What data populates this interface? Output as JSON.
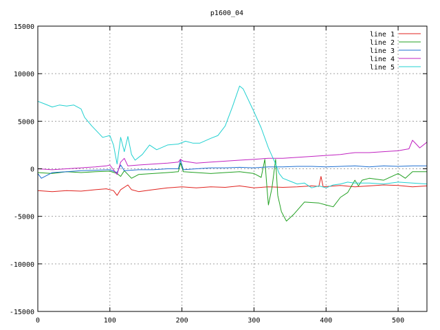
{
  "chart_data": {
    "type": "line",
    "title": "p1600_04",
    "xlabel": "",
    "ylabel": "",
    "xlim": [
      0,
      540
    ],
    "ylim": [
      -15000,
      15000
    ],
    "x_ticks": [
      "0",
      "100",
      "200",
      "300",
      "400",
      "500"
    ],
    "y_ticks": [
      "15000",
      "10000",
      "5000",
      "0",
      "-5000",
      "-10000",
      "-15000"
    ],
    "x_tick_values": [
      0,
      100,
      200,
      300,
      400,
      500
    ],
    "y_tick_values": [
      15000,
      10000,
      5000,
      0,
      -5000,
      -10000,
      -15000
    ],
    "grid": true,
    "legend_position": "top-right",
    "series": [
      {
        "name": "line 1",
        "color": "#e0201c",
        "points": [
          [
            0,
            -2300
          ],
          [
            20,
            -2400
          ],
          [
            40,
            -2300
          ],
          [
            60,
            -2350
          ],
          [
            80,
            -2200
          ],
          [
            95,
            -2100
          ],
          [
            105,
            -2300
          ],
          [
            110,
            -2800
          ],
          [
            115,
            -2200
          ],
          [
            125,
            -1700
          ],
          [
            130,
            -2200
          ],
          [
            140,
            -2400
          ],
          [
            160,
            -2200
          ],
          [
            180,
            -2000
          ],
          [
            200,
            -1900
          ],
          [
            220,
            -2000
          ],
          [
            240,
            -1900
          ],
          [
            260,
            -1950
          ],
          [
            280,
            -1800
          ],
          [
            300,
            -2000
          ],
          [
            320,
            -1900
          ],
          [
            340,
            -1950
          ],
          [
            360,
            -1900
          ],
          [
            380,
            -1800
          ],
          [
            390,
            -1850
          ],
          [
            393,
            -800
          ],
          [
            396,
            -1900
          ],
          [
            420,
            -1750
          ],
          [
            440,
            -1900
          ],
          [
            460,
            -1800
          ],
          [
            480,
            -1700
          ],
          [
            500,
            -1750
          ],
          [
            520,
            -1900
          ],
          [
            540,
            -1800
          ]
        ]
      },
      {
        "name": "line 2",
        "color": "#20a020",
        "points": [
          [
            0,
            -400
          ],
          [
            20,
            -500
          ],
          [
            40,
            -300
          ],
          [
            60,
            -400
          ],
          [
            80,
            -300
          ],
          [
            100,
            -250
          ],
          [
            110,
            -500
          ],
          [
            115,
            -800
          ],
          [
            120,
            -200
          ],
          [
            130,
            -1000
          ],
          [
            140,
            -600
          ],
          [
            160,
            -500
          ],
          [
            180,
            -400
          ],
          [
            195,
            -300
          ],
          [
            198,
            600
          ],
          [
            202,
            -300
          ],
          [
            220,
            -400
          ],
          [
            240,
            -500
          ],
          [
            260,
            -400
          ],
          [
            280,
            -300
          ],
          [
            300,
            -500
          ],
          [
            310,
            -900
          ],
          [
            315,
            1000
          ],
          [
            318,
            -2000
          ],
          [
            320,
            -3800
          ],
          [
            325,
            -2000
          ],
          [
            330,
            1000
          ],
          [
            333,
            -2800
          ],
          [
            338,
            -4500
          ],
          [
            345,
            -5500
          ],
          [
            355,
            -4800
          ],
          [
            370,
            -3500
          ],
          [
            390,
            -3600
          ],
          [
            400,
            -3800
          ],
          [
            410,
            -4000
          ],
          [
            420,
            -3000
          ],
          [
            430,
            -2500
          ],
          [
            440,
            -1200
          ],
          [
            445,
            -1800
          ],
          [
            450,
            -1200
          ],
          [
            460,
            -1000
          ],
          [
            480,
            -1200
          ],
          [
            500,
            -500
          ],
          [
            510,
            -1000
          ],
          [
            520,
            -300
          ],
          [
            540,
            -300
          ]
        ]
      },
      {
        "name": "line 3",
        "color": "#1c6ed0",
        "points": [
          [
            0,
            -500
          ],
          [
            5,
            -1000
          ],
          [
            20,
            -400
          ],
          [
            40,
            -300
          ],
          [
            60,
            -200
          ],
          [
            80,
            -150
          ],
          [
            100,
            -100
          ],
          [
            110,
            -400
          ],
          [
            115,
            400
          ],
          [
            120,
            -200
          ],
          [
            140,
            -100
          ],
          [
            160,
            -100
          ],
          [
            180,
            0
          ],
          [
            195,
            0
          ],
          [
            198,
            900
          ],
          [
            202,
            -100
          ],
          [
            220,
            0
          ],
          [
            240,
            100
          ],
          [
            260,
            100
          ],
          [
            280,
            150
          ],
          [
            300,
            100
          ],
          [
            320,
            200
          ],
          [
            340,
            200
          ],
          [
            360,
            250
          ],
          [
            380,
            250
          ],
          [
            400,
            200
          ],
          [
            420,
            250
          ],
          [
            440,
            300
          ],
          [
            460,
            200
          ],
          [
            480,
            300
          ],
          [
            500,
            250
          ],
          [
            520,
            300
          ],
          [
            540,
            300
          ]
        ]
      },
      {
        "name": "line 4",
        "color": "#c020c0",
        "points": [
          [
            0,
            0
          ],
          [
            20,
            -100
          ],
          [
            40,
            0
          ],
          [
            60,
            100
          ],
          [
            80,
            200
          ],
          [
            95,
            300
          ],
          [
            100,
            400
          ],
          [
            110,
            -600
          ],
          [
            115,
            700
          ],
          [
            120,
            1100
          ],
          [
            125,
            300
          ],
          [
            140,
            400
          ],
          [
            160,
            500
          ],
          [
            180,
            600
          ],
          [
            195,
            700
          ],
          [
            198,
            1000
          ],
          [
            202,
            800
          ],
          [
            220,
            600
          ],
          [
            240,
            700
          ],
          [
            260,
            800
          ],
          [
            280,
            900
          ],
          [
            300,
            1000
          ],
          [
            320,
            1100
          ],
          [
            340,
            1100
          ],
          [
            360,
            1200
          ],
          [
            380,
            1300
          ],
          [
            400,
            1400
          ],
          [
            420,
            1500
          ],
          [
            440,
            1700
          ],
          [
            460,
            1700
          ],
          [
            480,
            1800
          ],
          [
            500,
            1900
          ],
          [
            515,
            2100
          ],
          [
            520,
            3000
          ],
          [
            525,
            2600
          ],
          [
            530,
            2200
          ],
          [
            540,
            2800
          ]
        ]
      },
      {
        "name": "line 5",
        "color": "#20d0d0",
        "points": [
          [
            0,
            7100
          ],
          [
            10,
            6800
          ],
          [
            20,
            6500
          ],
          [
            30,
            6700
          ],
          [
            40,
            6600
          ],
          [
            50,
            6700
          ],
          [
            60,
            6300
          ],
          [
            65,
            5400
          ],
          [
            75,
            4500
          ],
          [
            85,
            3700
          ],
          [
            90,
            3300
          ],
          [
            100,
            3500
          ],
          [
            105,
            2500
          ],
          [
            110,
            500
          ],
          [
            115,
            3300
          ],
          [
            120,
            1800
          ],
          [
            125,
            3400
          ],
          [
            130,
            1500
          ],
          [
            135,
            900
          ],
          [
            145,
            1500
          ],
          [
            155,
            2500
          ],
          [
            165,
            2000
          ],
          [
            180,
            2500
          ],
          [
            195,
            2600
          ],
          [
            205,
            2900
          ],
          [
            215,
            2700
          ],
          [
            225,
            2700
          ],
          [
            240,
            3200
          ],
          [
            250,
            3500
          ],
          [
            260,
            4500
          ],
          [
            270,
            6500
          ],
          [
            280,
            8700
          ],
          [
            285,
            8400
          ],
          [
            300,
            6000
          ],
          [
            310,
            4300
          ],
          [
            320,
            2200
          ],
          [
            330,
            500
          ],
          [
            335,
            -500
          ],
          [
            340,
            -1000
          ],
          [
            350,
            -1300
          ],
          [
            360,
            -1600
          ],
          [
            370,
            -1500
          ],
          [
            380,
            -2000
          ],
          [
            390,
            -1800
          ],
          [
            400,
            -2000
          ],
          [
            410,
            -1700
          ],
          [
            420,
            -1600
          ],
          [
            430,
            -1400
          ],
          [
            440,
            -1500
          ],
          [
            460,
            -1500
          ],
          [
            480,
            -1600
          ],
          [
            500,
            -1400
          ],
          [
            520,
            -1500
          ],
          [
            540,
            -1600
          ]
        ]
      }
    ]
  }
}
